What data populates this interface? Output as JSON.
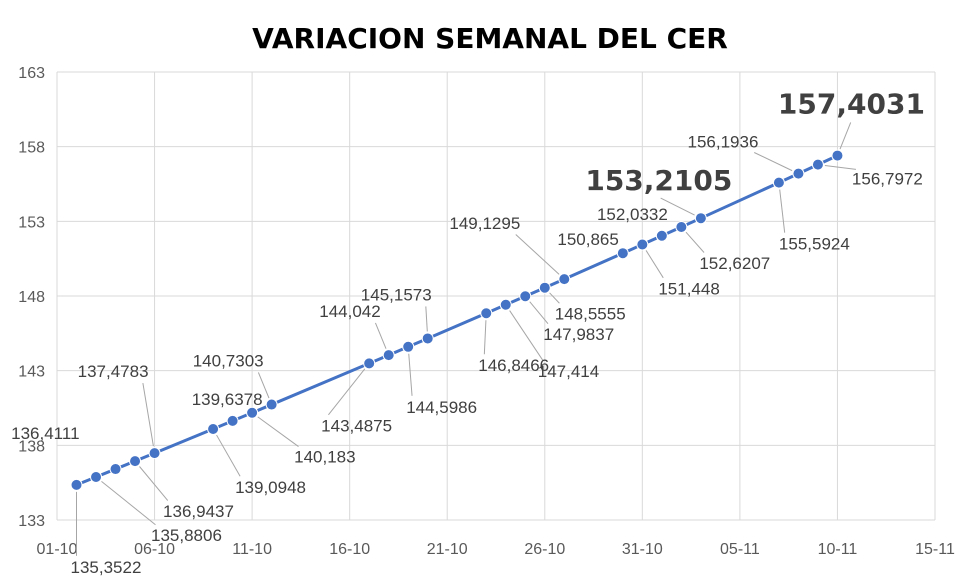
{
  "chart_data": {
    "type": "line",
    "title": "VARIACION SEMANAL DEL CER",
    "xlabel": "",
    "ylabel": "",
    "x_ticks": [
      "01-10",
      "06-10",
      "11-10",
      "16-10",
      "21-10",
      "26-10",
      "31-10",
      "05-11",
      "10-11",
      "15-11"
    ],
    "y_ticks": [
      133,
      138,
      143,
      148,
      153,
      158,
      163
    ],
    "xlim_days": [
      0,
      45
    ],
    "ylim": [
      133,
      163
    ],
    "grid": "vertical and horizontal",
    "legend": "none",
    "line_color": "#4472c4",
    "series": [
      {
        "name": "",
        "points": [
          {
            "date": "02-10",
            "day": 1,
            "value": 135.3522,
            "label": "135,3522"
          },
          {
            "date": "03-10",
            "day": 2,
            "value": 135.8806,
            "label": "135,8806"
          },
          {
            "date": "04-10",
            "day": 3,
            "value": 136.4111,
            "label": "136,4111"
          },
          {
            "date": "05-10",
            "day": 4,
            "value": 136.9437,
            "label": "136,9437"
          },
          {
            "date": "06-10",
            "day": 5,
            "value": 137.4783,
            "label": "137,4783"
          },
          {
            "date": "09-10",
            "day": 8,
            "value": 139.0948,
            "label": "139,0948"
          },
          {
            "date": "10-10",
            "day": 9,
            "value": 139.6378,
            "label": "139,6378"
          },
          {
            "date": "11-10",
            "day": 10,
            "value": 140.183,
            "label": "140,183"
          },
          {
            "date": "12-10",
            "day": 11,
            "value": 140.7303,
            "label": "140,7303"
          },
          {
            "date": "17-10",
            "day": 16,
            "value": 143.4875,
            "label": "143,4875"
          },
          {
            "date": "18-10",
            "day": 17,
            "value": 144.042,
            "label": "144,042"
          },
          {
            "date": "19-10",
            "day": 18,
            "value": 144.5986,
            "label": "144,5986"
          },
          {
            "date": "20-10",
            "day": 19,
            "value": 145.1573,
            "label": "145,1573"
          },
          {
            "date": "23-10",
            "day": 22,
            "value": 146.8466,
            "label": "146,8466"
          },
          {
            "date": "24-10",
            "day": 23,
            "value": 147.414,
            "label": "147,414"
          },
          {
            "date": "25-10",
            "day": 24,
            "value": 147.9837,
            "label": "147,9837"
          },
          {
            "date": "26-10",
            "day": 25,
            "value": 148.5555,
            "label": "148,5555"
          },
          {
            "date": "27-10",
            "day": 26,
            "value": 149.1295,
            "label": "149,1295"
          },
          {
            "date": "30-10",
            "day": 29,
            "value": 150.865,
            "label": "150,865"
          },
          {
            "date": "31-10",
            "day": 30,
            "value": 151.448,
            "label": "151,448"
          },
          {
            "date": "01-11",
            "day": 31,
            "value": 152.0332,
            "label": "152,0332"
          },
          {
            "date": "02-11",
            "day": 32,
            "value": 152.6207,
            "label": "152,6207"
          },
          {
            "date": "03-11",
            "day": 33,
            "value": 153.2105,
            "label": "153,2105",
            "highlight": true
          },
          {
            "date": "07-11",
            "day": 37,
            "value": 155.5924,
            "label": "155,5924"
          },
          {
            "date": "08-11",
            "day": 38,
            "value": 156.1936,
            "label": "156,1936"
          },
          {
            "date": "09-11",
            "day": 39,
            "value": 156.7972,
            "label": "156,7972"
          },
          {
            "date": "10-11",
            "day": 40,
            "value": 157.4031,
            "label": "157,4031",
            "highlight": true
          }
        ]
      }
    ]
  }
}
